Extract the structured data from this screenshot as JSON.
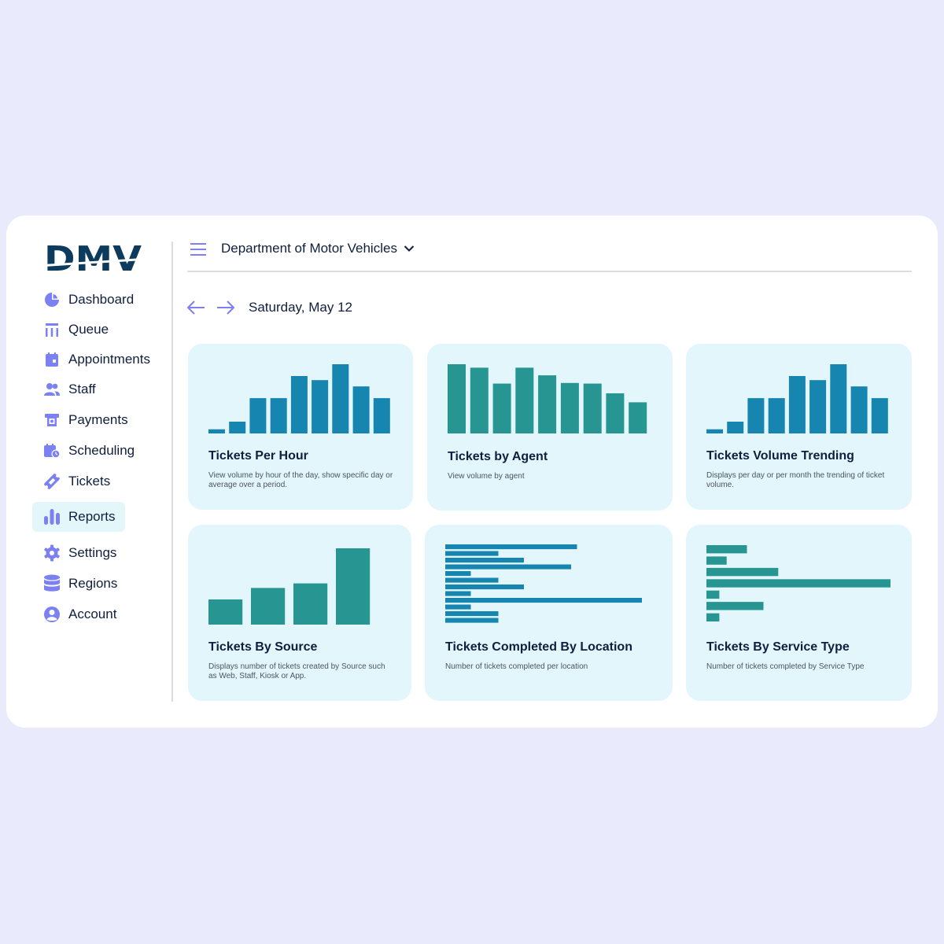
{
  "app": {
    "logo_text": "DMV"
  },
  "sidebar": {
    "items": [
      {
        "label": "Dashboard",
        "icon": "pie-chart-icon"
      },
      {
        "label": "Queue",
        "icon": "queue-icon"
      },
      {
        "label": "Appointments",
        "icon": "calendar-icon"
      },
      {
        "label": "Staff",
        "icon": "users-icon"
      },
      {
        "label": "Payments",
        "icon": "payment-icon"
      },
      {
        "label": "Scheduling",
        "icon": "calendar-clock-icon"
      },
      {
        "label": "Tickets",
        "icon": "ticket-icon"
      },
      {
        "label": "Reports",
        "icon": "bar-chart-icon",
        "active": true
      },
      {
        "label": "Settings",
        "icon": "gear-icon"
      },
      {
        "label": "Regions",
        "icon": "database-icon"
      },
      {
        "label": "Account",
        "icon": "user-circle-icon"
      }
    ]
  },
  "header": {
    "organization": "Department of Motor Vehicles"
  },
  "date_nav": {
    "date": "Saturday, May 12"
  },
  "colors": {
    "accent": "#7b80f2",
    "blue_bar": "#1685b0",
    "teal_bar": "#279692",
    "card_bg": "#e2f6fb",
    "text": "#0f1f3d"
  },
  "reports": [
    {
      "title": "Tickets Per Hour",
      "description": "View volume by hour of the day, show specific day or average over a period."
    },
    {
      "title": "Tickets by Agent",
      "description": "View volume by agent"
    },
    {
      "title": "Tickets Volume Trending",
      "description": "Displays per day or per month the trending of ticket volume."
    },
    {
      "title": "Tickets By Source",
      "description": "Displays number of tickets created by Source such as Web, Staff, Kiosk or App."
    },
    {
      "title": "Tickets Completed By Location",
      "description": "Number of tickets completed per location"
    },
    {
      "title": "Tickets By Service Type",
      "description": "Number of tickets completed by Service Type"
    }
  ],
  "chart_data": [
    {
      "type": "bar",
      "orientation": "vertical",
      "color": "#1685b0",
      "values": [
        6,
        17,
        51,
        51,
        83,
        77,
        100,
        68,
        51
      ],
      "ylim": [
        0,
        100
      ]
    },
    {
      "type": "bar",
      "orientation": "vertical",
      "color": "#279692",
      "values": [
        100,
        95,
        72,
        95,
        84,
        73,
        72,
        58,
        45
      ],
      "ylim": [
        0,
        100
      ]
    },
    {
      "type": "bar",
      "orientation": "vertical",
      "color": "#1685b0",
      "values": [
        6,
        17,
        51,
        51,
        83,
        77,
        100,
        68,
        51
      ],
      "ylim": [
        0,
        100
      ]
    },
    {
      "type": "bar",
      "orientation": "vertical",
      "color": "#279692",
      "values": [
        33,
        48,
        54,
        100
      ],
      "ylim": [
        0,
        100
      ]
    },
    {
      "type": "bar",
      "orientation": "horizontal",
      "color": "#1685b0",
      "values": [
        67,
        27,
        40,
        64,
        13,
        27,
        40,
        13,
        100,
        13,
        27,
        27
      ],
      "xlim": [
        0,
        100
      ]
    },
    {
      "type": "bar",
      "orientation": "horizontal",
      "color": "#279692",
      "values": [
        22,
        11,
        39,
        100,
        7,
        31,
        7
      ],
      "xlim": [
        0,
        100
      ]
    }
  ]
}
